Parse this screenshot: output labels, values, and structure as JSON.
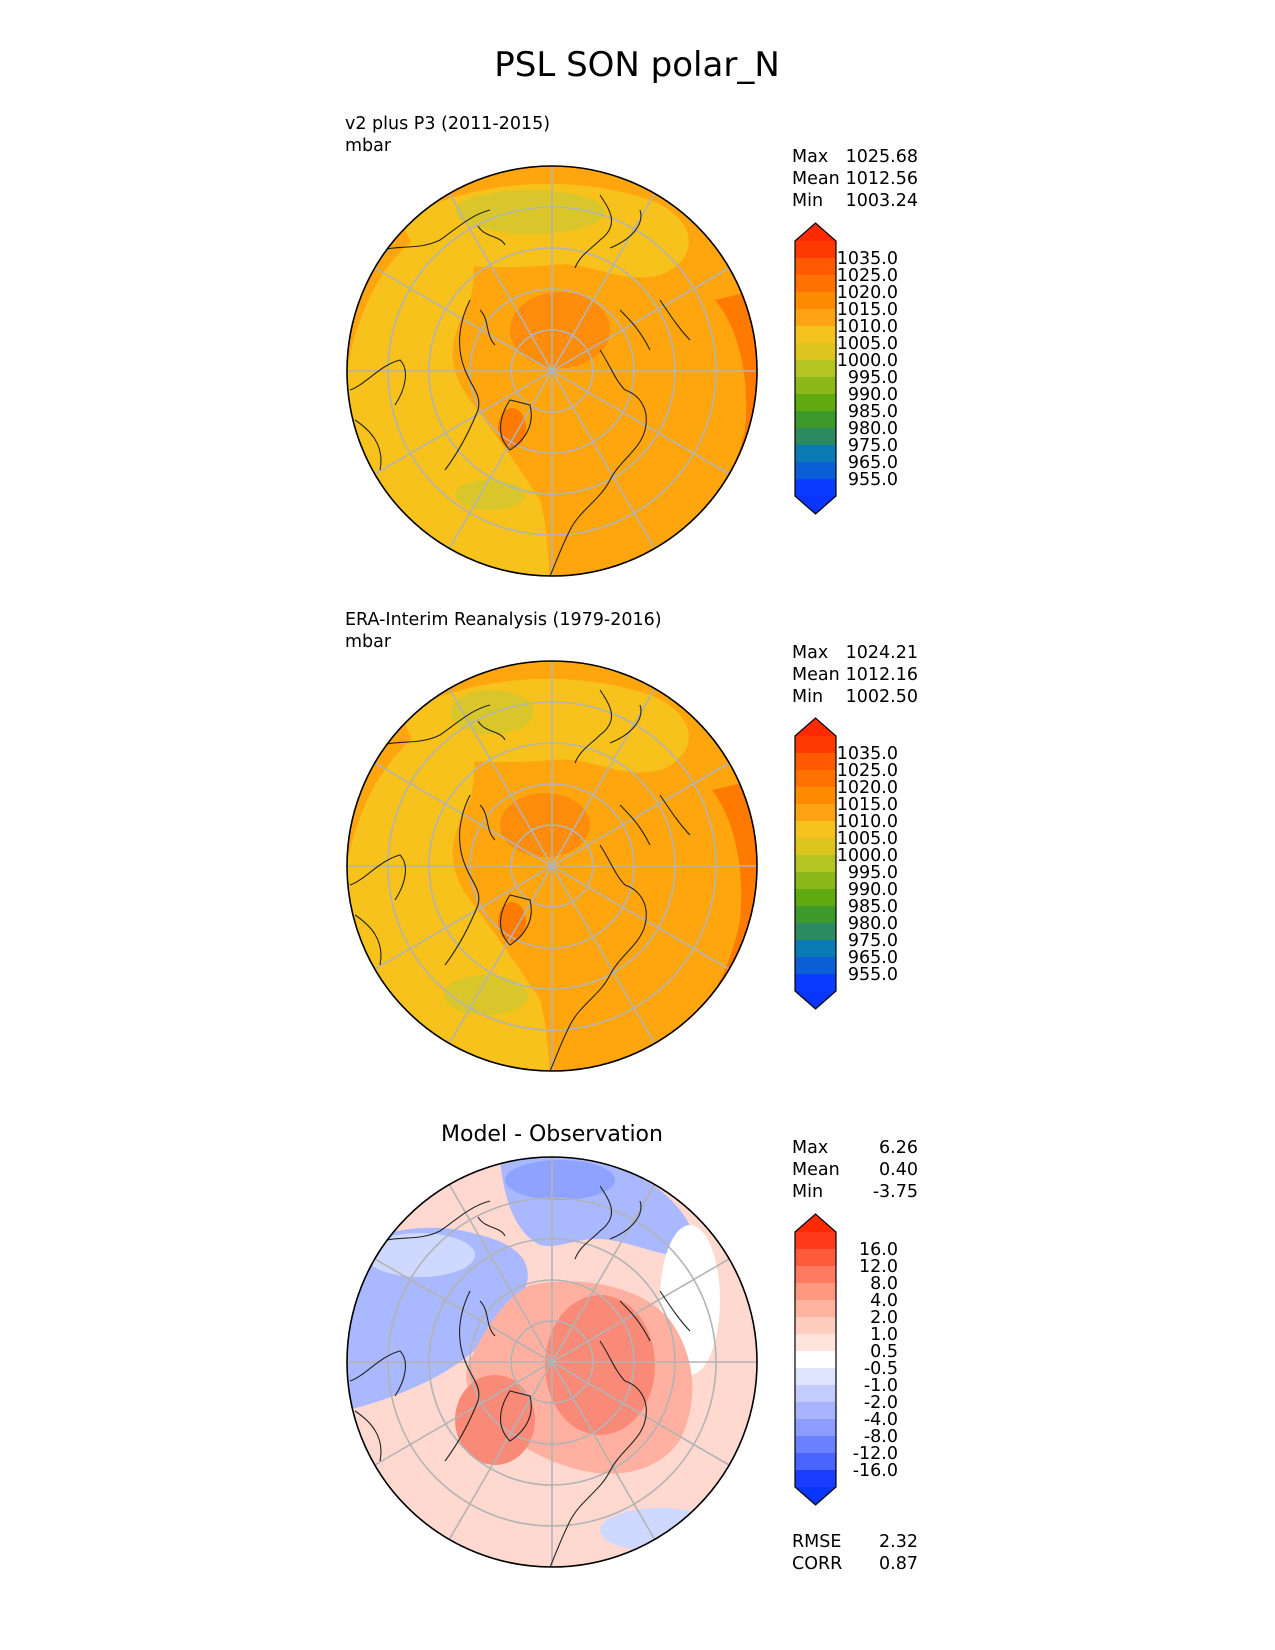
{
  "title": "PSL SON polar_N",
  "panels": [
    {
      "id": "test",
      "heading_line1": "v2 plus P3 (2011-2015)",
      "heading_line2": "mbar",
      "stats": [
        {
          "label": "Max",
          "value": "1025.68"
        },
        {
          "label": "Mean",
          "value": "1012.56"
        },
        {
          "label": "Min",
          "value": "1003.24"
        }
      ],
      "colorbar": {
        "labels": [
          "1035.0",
          "1025.0",
          "1020.0",
          "1015.0",
          "1010.0",
          "1005.0",
          "1000.0",
          "995.0",
          "990.0",
          "985.0",
          "980.0",
          "975.0",
          "965.0",
          "955.0"
        ],
        "colors": [
          "#ff3a00",
          "#ff5a00",
          "#ff7200",
          "#ff8c00",
          "#ffa214",
          "#f5c21e",
          "#ddc51e",
          "#b5c423",
          "#8cb81a",
          "#5faa10",
          "#3d9a2a",
          "#2c8a60",
          "#0a7ab4",
          "#0a5fd6",
          "#0a3cff"
        ],
        "over_color": "#ff2a00",
        "under_color": "#0a34ff"
      },
      "map_colors": {
        "base": "#ffa60f",
        "mid": "#f7c21c",
        "low": "#d8c62a",
        "high": "#ff8c0a",
        "peak": "#ff7a00"
      }
    },
    {
      "id": "reference",
      "heading_line1": "ERA-Interim Reanalysis (1979-2016)",
      "heading_line2": "mbar",
      "stats": [
        {
          "label": "Max",
          "value": "1024.21"
        },
        {
          "label": "Mean",
          "value": "1012.16"
        },
        {
          "label": "Min",
          "value": "1002.50"
        }
      ],
      "colorbar": {
        "labels": [
          "1035.0",
          "1025.0",
          "1020.0",
          "1015.0",
          "1010.0",
          "1005.0",
          "1000.0",
          "995.0",
          "990.0",
          "985.0",
          "980.0",
          "975.0",
          "965.0",
          "955.0"
        ],
        "colors": [
          "#ff3a00",
          "#ff5a00",
          "#ff7200",
          "#ff8c00",
          "#ffa214",
          "#f5c21e",
          "#ddc51e",
          "#b5c423",
          "#8cb81a",
          "#5faa10",
          "#3d9a2a",
          "#2c8a60",
          "#0a7ab4",
          "#0a5fd6",
          "#0a3cff"
        ],
        "over_color": "#ff2a00",
        "under_color": "#0a34ff"
      },
      "map_colors": {
        "base": "#ffa60f",
        "mid": "#f7c21c",
        "low": "#d8c62a",
        "high": "#ff8c0a",
        "peak": "#ff7a00"
      }
    },
    {
      "id": "diff",
      "centered_title": "Model - Observation",
      "stats": [
        {
          "label": "Max",
          "value": "6.26"
        },
        {
          "label": "Mean",
          "value": "0.40"
        },
        {
          "label": "Min",
          "value": "-3.75"
        }
      ],
      "colorbar": {
        "labels": [
          "16.0",
          "12.0",
          "8.0",
          "4.0",
          "2.0",
          "1.0",
          "0.5",
          "-0.5",
          "-1.0",
          "-2.0",
          "-4.0",
          "-8.0",
          "-12.0",
          "-16.0"
        ],
        "colors": [
          "#ff3a1a",
          "#ff5a3c",
          "#ff7a60",
          "#ff9880",
          "#ffb4a0",
          "#ffcdc0",
          "#ffe4de",
          "#ffffff",
          "#dfe4ff",
          "#c4ccff",
          "#a8b4ff",
          "#8c9cff",
          "#6a80ff",
          "#4a64ff",
          "#1a3cff"
        ],
        "over_color": "#ff2a00",
        "under_color": "#0a34ff"
      },
      "bottom_stats": [
        {
          "label": "RMSE",
          "value": "2.32"
        },
        {
          "label": "CORR",
          "value": "0.87"
        }
      ],
      "map_colors": {
        "base": "#ffd9d0",
        "white": "#ffffff",
        "pos": "#ffb0a0",
        "pos_strong": "#fa8a78",
        "neg": "#a9b8ff",
        "neg_strong": "#8ea2ff",
        "neg_light": "#cfd8ff"
      }
    }
  ]
}
